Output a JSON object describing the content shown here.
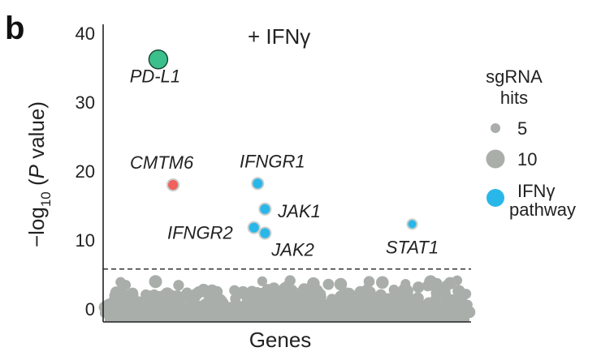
{
  "panel_label": "b",
  "colors": {
    "background_points": "#a9aeab",
    "pdl1": "#3cc08b",
    "cmtm6": "#f0625e",
    "ifng_pathway": "#29b7ea",
    "threshold_line": "#333333"
  },
  "chart_data": {
    "type": "scatter",
    "title": "+ IFNγ",
    "xlabel": "Genes",
    "ylabel_parts": {
      "prefix": "−log",
      "sub": "10",
      "paren_open": " (",
      "italic": "P",
      "rest": " value)"
    },
    "ylim": [
      -1.5,
      41
    ],
    "yticks": [
      0,
      10,
      20,
      30,
      40
    ],
    "ytick_labels": [
      "0",
      "10",
      "20",
      "30",
      "40"
    ],
    "significance_threshold": 5.8,
    "grid": false,
    "legend": {
      "placement": "right",
      "title_line1": "sgRNA",
      "title_line2": "hits",
      "size_items": [
        {
          "label": "5",
          "hits": 5
        },
        {
          "label": "10",
          "hits": 10
        }
      ],
      "color_item": {
        "label_line1": "IFNγ",
        "label_line2": "pathway"
      }
    },
    "highlighted_genes": [
      {
        "name": "PD-L1",
        "x": 0.15,
        "y": 36.2,
        "hits": 10,
        "group": "pdl1"
      },
      {
        "name": "CMTM6",
        "x": 0.19,
        "y": 18.0,
        "hits": 6,
        "group": "cmtm6"
      },
      {
        "name": "IFNGR1",
        "x": 0.42,
        "y": 18.2,
        "hits": 6,
        "group": "ifng_pathway"
      },
      {
        "name": "JAK1",
        "x": 0.44,
        "y": 14.5,
        "hits": 6,
        "group": "ifng_pathway"
      },
      {
        "name": "IFNGR2",
        "x": 0.41,
        "y": 11.8,
        "hits": 6,
        "group": "ifng_pathway"
      },
      {
        "name": "JAK2",
        "x": 0.44,
        "y": 11.0,
        "hits": 6,
        "group": "ifng_pathway"
      },
      {
        "name": "STAT1",
        "x": 0.84,
        "y": 12.3,
        "hits": 5,
        "group": "ifng_pathway"
      }
    ]
  }
}
